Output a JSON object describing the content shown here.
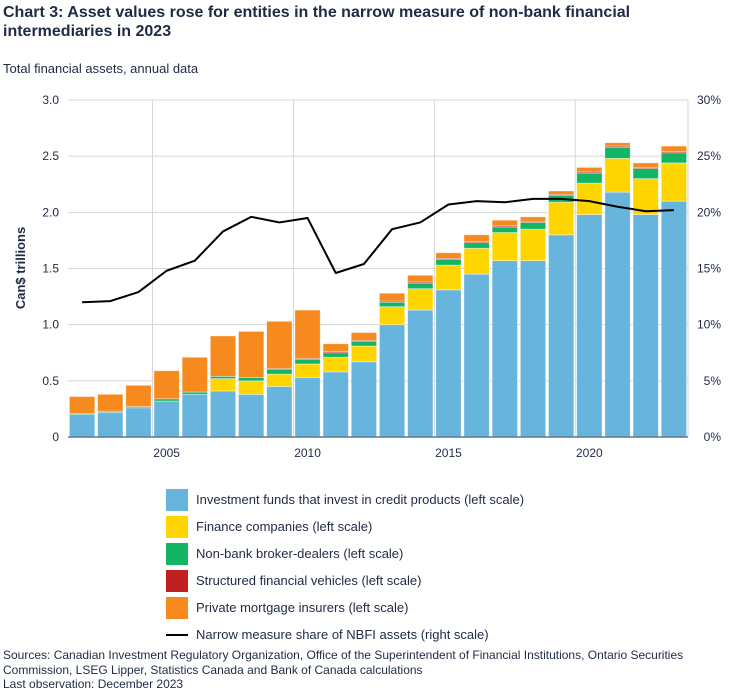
{
  "title": "Chart 3: Asset values rose for entities in the narrow measure of non-bank financial intermediaries in 2023",
  "subtitle": "Total financial assets, annual data",
  "sources": "Sources: Canadian Investment Regulatory Organization, Office of the Superintendent of Financial Institutions, Ontario Securities Commission, LSEG Lipper, Statistics Canada and Bank of Canada calculations",
  "last_observation": "Last observation: December 2023",
  "chart_data": {
    "type": "bar",
    "stacked": true,
    "ylabel": "Can$ trillions",
    "ylim": [
      0,
      3.0
    ],
    "yticks": [
      "0",
      "0.5",
      "1.0",
      "1.5",
      "2.0",
      "2.5",
      "3.0"
    ],
    "y2lim": [
      0,
      30
    ],
    "y2ticks": [
      "0%",
      "5%",
      "10%",
      "15%",
      "20%",
      "25%",
      "30%"
    ],
    "xticks": [
      "2005",
      "2010",
      "2015",
      "2020"
    ],
    "categories": [
      2002,
      2003,
      2004,
      2005,
      2006,
      2007,
      2008,
      2009,
      2010,
      2011,
      2012,
      2013,
      2014,
      2015,
      2016,
      2017,
      2018,
      2019,
      2020,
      2021,
      2022,
      2023
    ],
    "grid": true,
    "legend_position": "bottom",
    "series": [
      {
        "name": "Investment funds that invest in credit products (left scale)",
        "color": "#67b5dc",
        "values": [
          0.2,
          0.22,
          0.26,
          0.32,
          0.38,
          0.41,
          0.38,
          0.45,
          0.53,
          0.58,
          0.67,
          1.0,
          1.13,
          1.31,
          1.45,
          1.57,
          1.57,
          1.8,
          1.98,
          2.18,
          1.98,
          2.1
        ]
      },
      {
        "name": "Finance companies (left scale)",
        "color": "#ffd500",
        "values": [
          0,
          0,
          0,
          0,
          0,
          0.11,
          0.12,
          0.11,
          0.12,
          0.13,
          0.14,
          0.16,
          0.19,
          0.22,
          0.23,
          0.25,
          0.28,
          0.29,
          0.28,
          0.3,
          0.32,
          0.34
        ]
      },
      {
        "name": "Non-bank broker-dealers (left scale)",
        "color": "#12b563",
        "values": [
          0.01,
          0.01,
          0.01,
          0.02,
          0.02,
          0.02,
          0.03,
          0.04,
          0.04,
          0.04,
          0.04,
          0.04,
          0.05,
          0.05,
          0.05,
          0.05,
          0.06,
          0.06,
          0.09,
          0.1,
          0.09,
          0.09
        ]
      },
      {
        "name": "Structured financial vehicles (left scale)",
        "color": "#c0201f",
        "values": [
          0,
          0,
          0,
          0,
          0,
          0,
          0,
          0.01,
          0.01,
          0.01,
          0.01,
          0.01,
          0.01,
          0.01,
          0.01,
          0.01,
          0.01,
          0.01,
          0.01,
          0.01,
          0.01,
          0.01
        ]
      },
      {
        "name": "Private mortgage insurers (left scale)",
        "color": "#f68a1f",
        "values": [
          0.15,
          0.15,
          0.19,
          0.25,
          0.31,
          0.36,
          0.41,
          0.42,
          0.43,
          0.07,
          0.07,
          0.07,
          0.06,
          0.05,
          0.06,
          0.05,
          0.04,
          0.03,
          0.04,
          0.03,
          0.04,
          0.05
        ]
      }
    ],
    "line": {
      "name": "Narrow measure share of NBFI assets (right scale)",
      "color": "#000000",
      "axis": "right",
      "values": [
        12.0,
        12.1,
        12.9,
        14.8,
        15.7,
        18.3,
        19.6,
        19.1,
        19.5,
        14.6,
        15.4,
        18.5,
        19.1,
        20.7,
        21.0,
        20.9,
        21.2,
        21.2,
        21.0,
        20.5,
        20.1,
        20.2
      ]
    }
  }
}
